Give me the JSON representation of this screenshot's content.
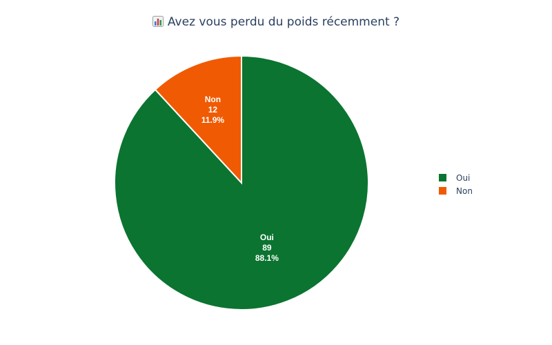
{
  "chart_data": {
    "type": "pie",
    "title": "Avez vous perdu du poids récemment ?",
    "title_icon": "bar-chart-icon",
    "slices": [
      {
        "label": "Oui",
        "value": 89,
        "percent": "88.1%",
        "color": "#0b7430"
      },
      {
        "label": "Non",
        "value": 12,
        "percent": "11.9%",
        "color": "#f05a02"
      }
    ],
    "legend": {
      "placement": "right",
      "entries": [
        "Oui",
        "Non"
      ]
    }
  }
}
